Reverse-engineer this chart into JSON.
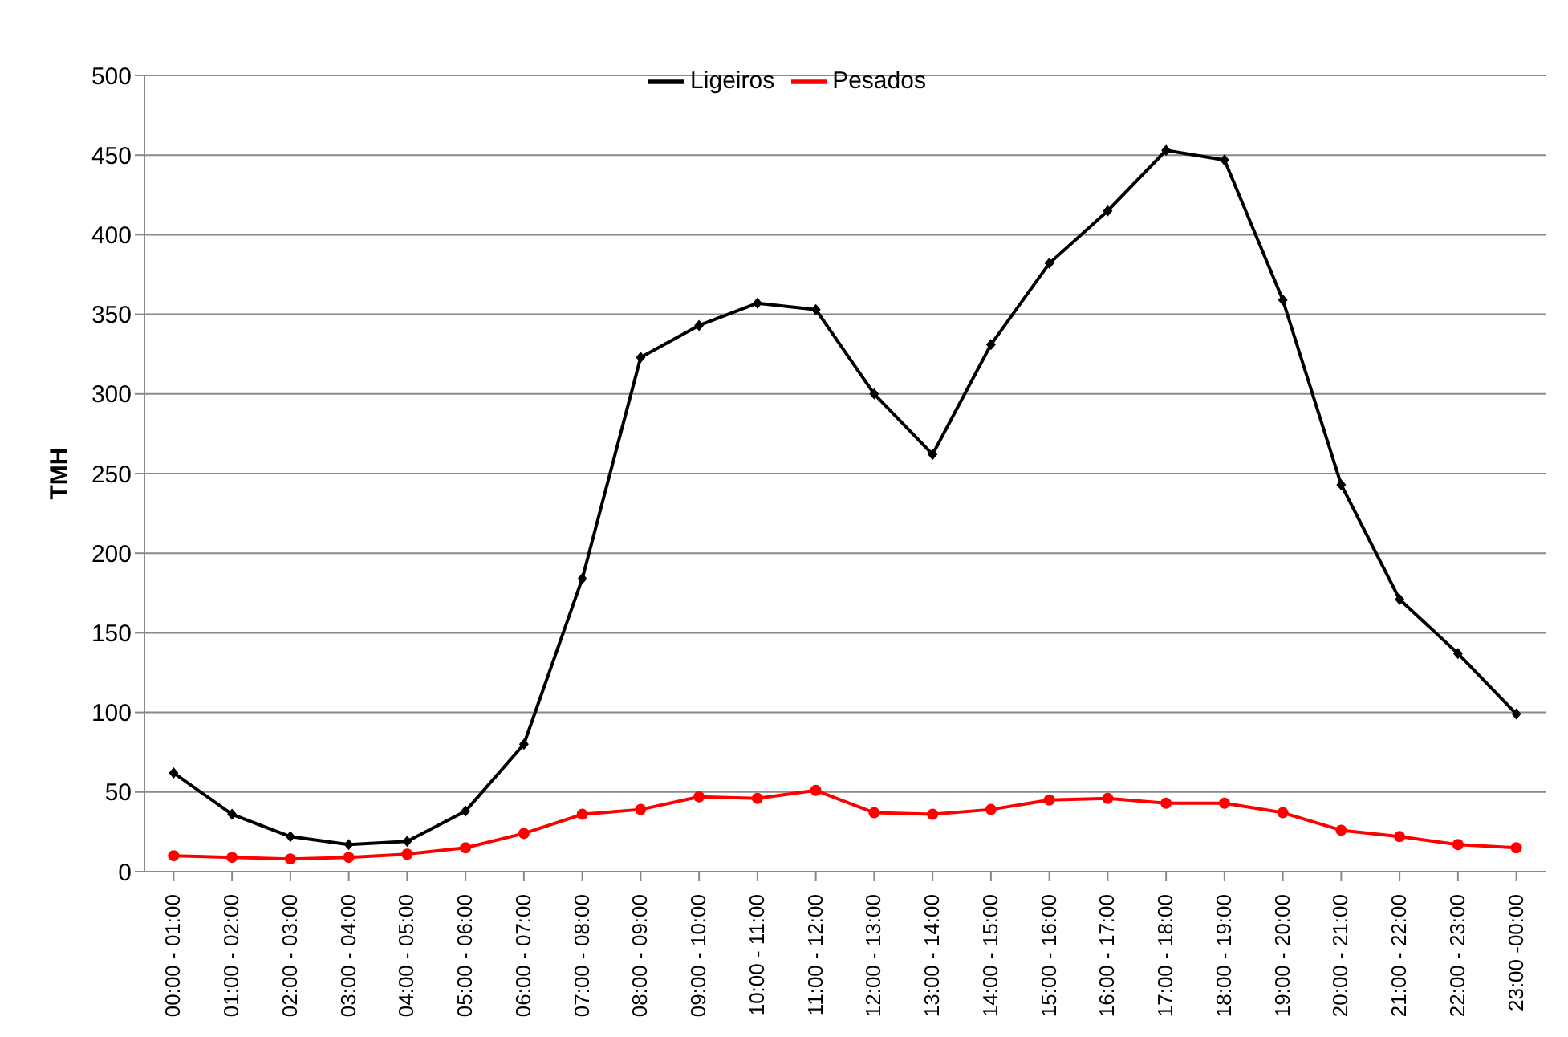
{
  "chart_data": {
    "type": "line",
    "ylabel": "TMH",
    "categories": [
      "00:00 - 01:00",
      "01:00 - 02:00",
      "02:00 - 03:00",
      "03:00 - 04:00",
      "04:00 - 05:00",
      "05:00 - 06:00",
      "06:00 - 07:00",
      "07:00 - 08:00",
      "08:00 - 09:00",
      "09:00 - 10:00",
      "10:00 - 11:00",
      "11:00 - 12:00",
      "12:00 - 13:00",
      "13:00 - 14:00",
      "14:00 - 15:00",
      "15:00 - 16:00",
      "16:00 - 17:00",
      "17:00 - 18:00",
      "18:00 - 19:00",
      "19:00 - 20:00",
      "20:00 - 21:00",
      "21:00 - 22:00",
      "22:00 - 23:00",
      "23:00 -00:00"
    ],
    "series": [
      {
        "name": "Ligeiros",
        "color": "#000000",
        "marker": "diamond",
        "values": [
          62,
          36,
          22,
          17,
          19,
          38,
          80,
          184,
          323,
          343,
          357,
          353,
          300,
          262,
          331,
          382,
          415,
          453,
          447,
          359,
          243,
          171,
          137,
          99
        ]
      },
      {
        "name": "Pesados",
        "color": "#ff0000",
        "marker": "circle",
        "values": [
          10,
          9,
          8,
          9,
          11,
          15,
          24,
          36,
          39,
          47,
          46,
          51,
          37,
          36,
          39,
          45,
          46,
          43,
          43,
          37,
          26,
          22,
          17,
          15
        ]
      }
    ],
    "ylim": [
      0,
      500
    ],
    "yticks": [
      0,
      50,
      100,
      150,
      200,
      250,
      300,
      350,
      400,
      450,
      500
    ],
    "grid": "y",
    "legend": "top",
    "line_style": "solid"
  }
}
